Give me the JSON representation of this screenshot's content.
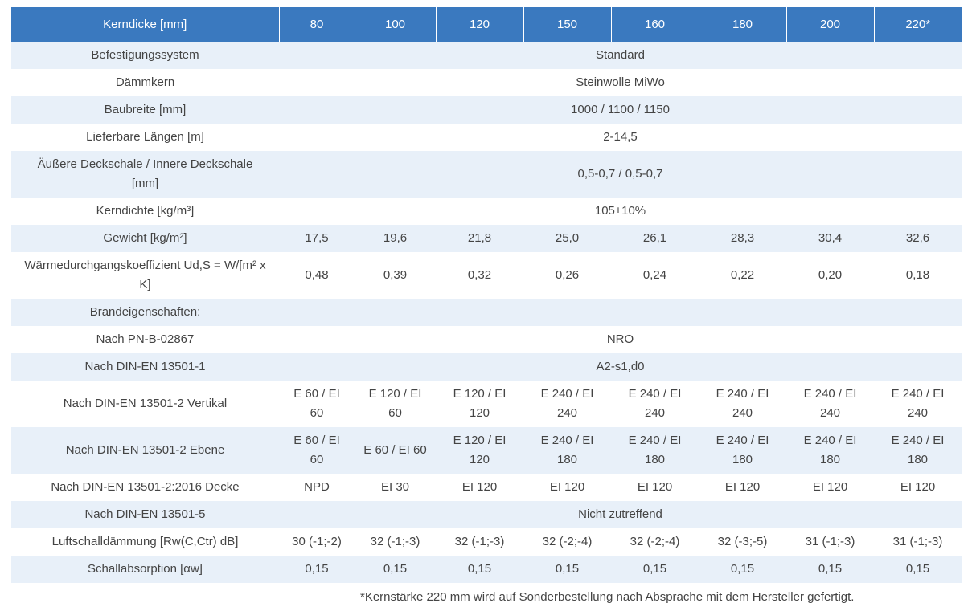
{
  "header": {
    "label": "Kerndicke [mm]",
    "columns": [
      "80",
      "100",
      "120",
      "150",
      "160",
      "180",
      "200",
      "220*"
    ]
  },
  "rows": [
    {
      "label": "Befestigungssystem",
      "merged": "Standard"
    },
    {
      "label": "Dämmkern",
      "merged": "Steinwolle MiWo"
    },
    {
      "label": "Baubreite [mm]",
      "merged": "1000 / 1100 / 1150"
    },
    {
      "label": "Lieferbare Längen [m]",
      "merged": "2-14,5"
    },
    {
      "label": "Äußere Deckschale / Innere Deckschale [mm]",
      "merged": "0,5-0,7 / 0,5-0,7"
    },
    {
      "label": "Kerndichte [kg/m³]",
      "merged": "105±10%"
    },
    {
      "label": "Gewicht [kg/m²]",
      "values": [
        "17,5",
        "19,6",
        "21,8",
        "25,0",
        "26,1",
        "28,3",
        "30,4",
        "32,6"
      ]
    },
    {
      "label": "Wärmedurchgangskoeffizient Ud,S = W/[m² x K]",
      "values": [
        "0,48",
        "0,39",
        "0,32",
        "0,26",
        "0,24",
        "0,22",
        "0,20",
        "0,18"
      ]
    },
    {
      "label": "Brandeigenschaften:",
      "merged": ""
    },
    {
      "label": "Nach PN-B-02867",
      "merged": "NRO"
    },
    {
      "label": "Nach DIN-EN 13501-1",
      "merged": "A2-s1,d0"
    },
    {
      "label": "Nach DIN-EN 13501-2 Vertikal",
      "values": [
        "E 60 / EI 60",
        "E 120 / EI 60",
        "E 120 / EI 120",
        "E 240 / EI 240",
        "E 240 / EI 240",
        "E 240 / EI 240",
        "E 240 / EI 240",
        "E 240 / EI 240"
      ]
    },
    {
      "label": "Nach DIN-EN 13501-2 Ebene",
      "values": [
        "E 60 / EI 60",
        "E 60 / EI 60",
        "E 120 / EI 120",
        "E 240 / EI 180",
        "E 240 / EI 180",
        "E 240 / EI 180",
        "E 240 / EI 180",
        "E 240 / EI 180"
      ]
    },
    {
      "label": "Nach DIN-EN 13501-2:2016 Decke",
      "values": [
        "NPD",
        "EI 30",
        "EI 120",
        "EI 120",
        "EI 120",
        "EI 120",
        "EI 120",
        "EI 120"
      ]
    },
    {
      "label": "Nach DIN-EN 13501-5",
      "merged": "Nicht zutreffend"
    },
    {
      "label": "Luftschalldämmung [Rw(C,Ctr) dB]",
      "values": [
        "30 (-1;-2)",
        "32 (-1;-3)",
        "32 (-1;-3)",
        "32 (-2;-4)",
        "32 (-2;-4)",
        "32 (-3;-5)",
        "31 (-1;-3)",
        "31 (-1;-3)"
      ]
    },
    {
      "label": "Schallabsorption [αw]",
      "values": [
        "0,15",
        "0,15",
        "0,15",
        "0,15",
        "0,15",
        "0,15",
        "0,15",
        "0,15"
      ]
    }
  ],
  "footnote": "*Kernstärke 220 mm wird auf Sonderbestellung nach Absprache mit dem Hersteller gefertigt.",
  "colors": {
    "header_bg": "#3a79bf",
    "row_alt_bg": "#e8f0f9",
    "text": "#444444"
  }
}
